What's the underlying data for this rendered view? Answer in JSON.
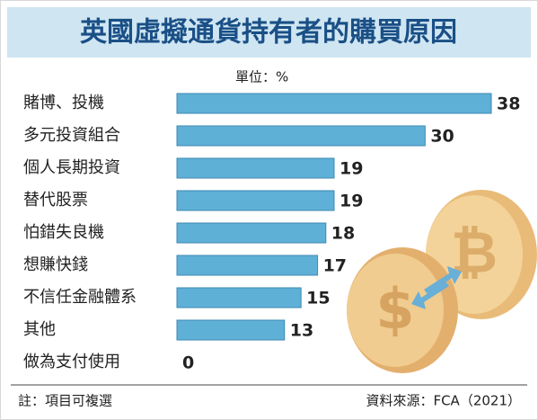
{
  "chart_data": {
    "type": "bar",
    "orientation": "horizontal",
    "title": "英國虛擬通貨持有者的購買原因",
    "unit": "單位：%",
    "categories": [
      "賭博、投機",
      "多元投資組合",
      "個人長期投資",
      "替代股票",
      "怕錯失良機",
      "想賺快錢",
      "不信任金融體系",
      "其他",
      "做為支付使用"
    ],
    "values": [
      38,
      30,
      19,
      19,
      18,
      17,
      15,
      13,
      0
    ],
    "color": "#5eb0d6",
    "note": "註：項目可複選",
    "source": "資料來源：FCA（2021）"
  }
}
